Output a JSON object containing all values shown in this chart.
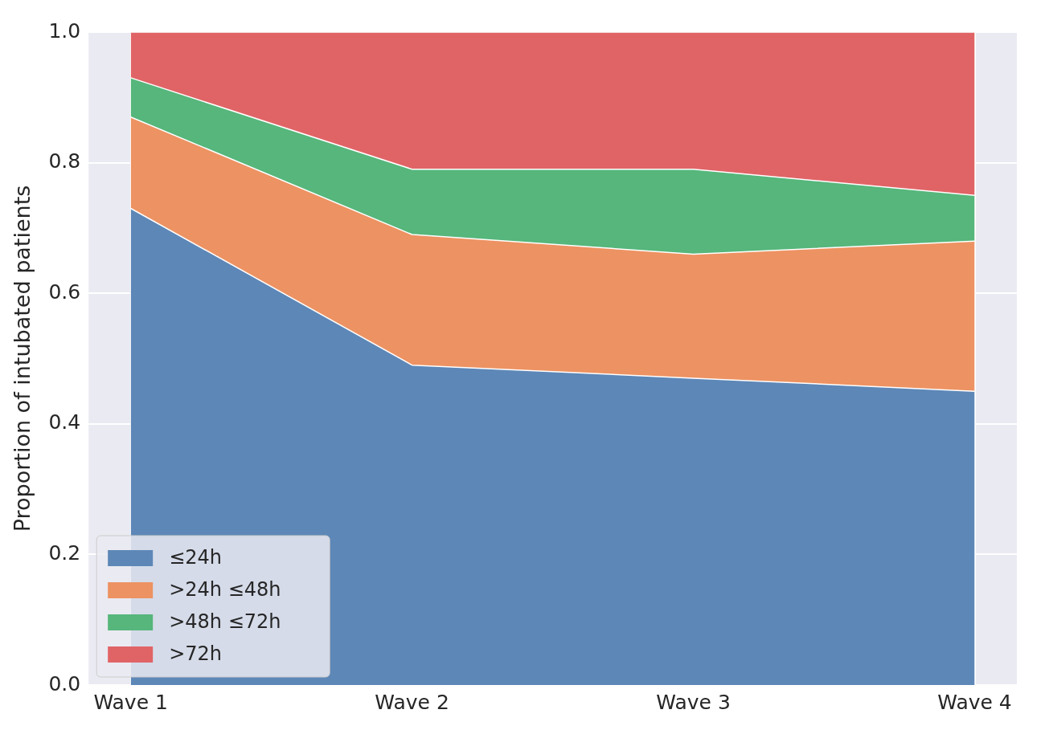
{
  "chart_data": {
    "type": "area",
    "stacked": true,
    "ylabel": "Proportion of intubated patients",
    "categories": [
      "Wave 1",
      "Wave 2",
      "Wave 3",
      "Wave 4"
    ],
    "series": [
      {
        "name": "≤24h",
        "color": "#5d87b7",
        "values": [
          0.73,
          0.49,
          0.47,
          0.45
        ]
      },
      {
        "name": ">24h ≤48h",
        "color": "#ed9262",
        "values": [
          0.14,
          0.2,
          0.19,
          0.23
        ]
      },
      {
        "name": ">48h ≤72h",
        "color": "#56b67b",
        "values": [
          0.06,
          0.1,
          0.13,
          0.07
        ]
      },
      {
        "name": ">72h",
        "color": "#e06466",
        "values": [
          0.07,
          0.21,
          0.21,
          0.25
        ]
      }
    ],
    "ylim": [
      0,
      1
    ],
    "yticks": [
      {
        "value": 0,
        "label": "0.0"
      },
      0.2,
      0.4,
      0.6,
      0.8,
      {
        "value": 1,
        "label": "1.0"
      }
    ],
    "grid": true,
    "legend": "bottom left"
  }
}
